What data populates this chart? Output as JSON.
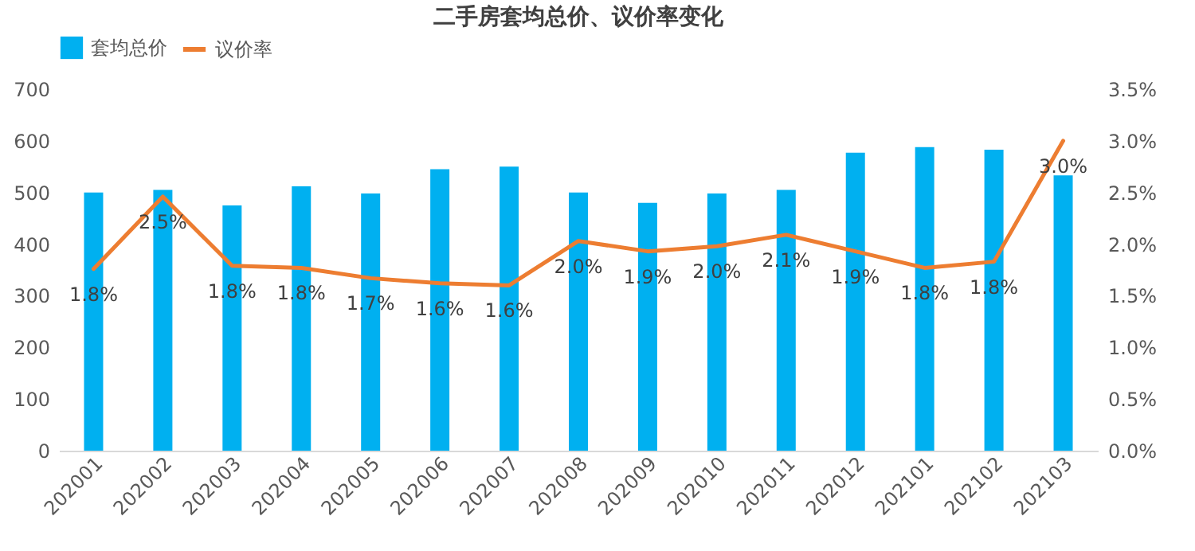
{
  "chart_data": {
    "type": "bar",
    "title": "二手房套均总价、议价率变化",
    "categories": [
      "202001",
      "202002",
      "202003",
      "202004",
      "202005",
      "202006",
      "202007",
      "202008",
      "202009",
      "202010",
      "202011",
      "202012",
      "202101",
      "202102",
      "202103"
    ],
    "series": [
      {
        "name": "套均总价",
        "color": "#00b0f0",
        "values": [
          500,
          505,
          475,
          512,
          498,
          545,
          550,
          500,
          480,
          498,
          505,
          577,
          588,
          583,
          533
        ]
      },
      {
        "name": "议价率",
        "type": "line",
        "axis": "y2",
        "color": "#ed7d31",
        "values": [
          1.76,
          2.46,
          1.79,
          1.77,
          1.67,
          1.62,
          1.6,
          2.03,
          1.93,
          1.98,
          2.09,
          1.93,
          1.77,
          1.83,
          3.0
        ],
        "value_labels": [
          "1.8%",
          "2.5%",
          "1.8%",
          "1.8%",
          "1.7%",
          "1.6%",
          "1.6%",
          "2.0%",
          "1.9%",
          "2.0%",
          "2.1%",
          "1.9%",
          "1.8%",
          "1.8%",
          "3.0%"
        ]
      }
    ],
    "ylim": [
      0,
      700
    ],
    "yticks": [
      0,
      100,
      200,
      300,
      400,
      500,
      600,
      700
    ],
    "y2lim": [
      0,
      3.5
    ],
    "y2ticks": [
      {
        "value": 0,
        "label": "0.0%"
      },
      {
        "value": 0.5,
        "label": "0.5%"
      },
      {
        "value": 1,
        "label": "1.0%"
      },
      {
        "value": 1.5,
        "label": "1.5%"
      },
      {
        "value": 2,
        "label": "2.0%"
      },
      {
        "value": 2.5,
        "label": "2.5%"
      },
      {
        "value": 3,
        "label": "3.0%"
      },
      {
        "value": 3.5,
        "label": "3.5%"
      }
    ],
    "grid": false,
    "legend": "top"
  }
}
